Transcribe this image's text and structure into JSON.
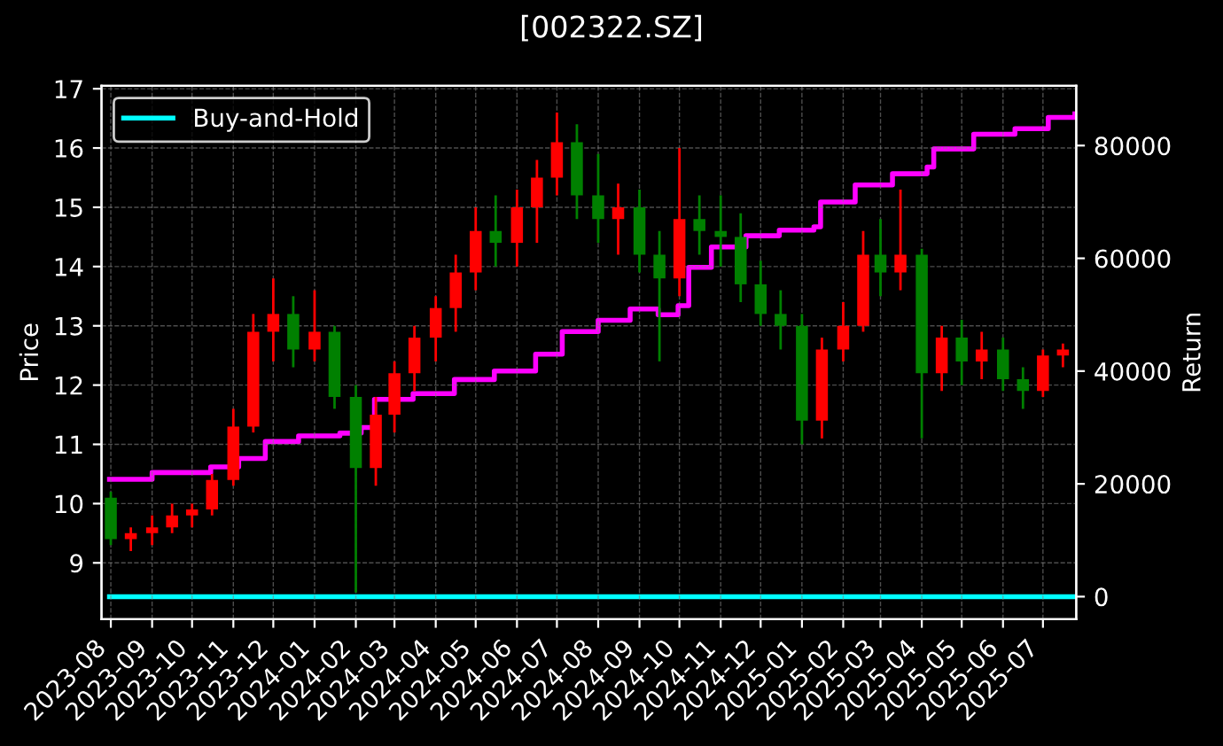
{
  "chart_data": {
    "type": "candlestick",
    "title": "[002322.SZ]",
    "ylabel": "Price",
    "y2label": "Return",
    "x": [
      "2023-08-01",
      "2023-08-16",
      "2023-09-01",
      "2023-09-16",
      "2023-10-01",
      "2023-10-16",
      "2023-11-01",
      "2023-11-16",
      "2023-12-01",
      "2023-12-16",
      "2024-01-01",
      "2024-01-16",
      "2024-02-01",
      "2024-02-16",
      "2024-03-01",
      "2024-03-16",
      "2024-04-01",
      "2024-04-16",
      "2024-05-01",
      "2024-05-16",
      "2024-06-01",
      "2024-06-16",
      "2024-07-01",
      "2024-07-16",
      "2024-08-01",
      "2024-08-16",
      "2024-09-01",
      "2024-09-16",
      "2024-10-01",
      "2024-10-16",
      "2024-11-01",
      "2024-11-16",
      "2024-12-01",
      "2024-12-16",
      "2025-01-01",
      "2025-01-16",
      "2025-02-01",
      "2025-02-16",
      "2025-03-01",
      "2025-03-16",
      "2025-04-01",
      "2025-04-16",
      "2025-05-01",
      "2025-05-16",
      "2025-06-01",
      "2025-06-16",
      "2025-07-01",
      "2025-07-16"
    ],
    "ohlc": [
      [
        10.1,
        10.2,
        9.3,
        9.4
      ],
      [
        9.4,
        9.6,
        9.2,
        9.5
      ],
      [
        9.5,
        9.8,
        9.3,
        9.6
      ],
      [
        9.6,
        10.0,
        9.5,
        9.8
      ],
      [
        9.8,
        10.0,
        9.6,
        9.9
      ],
      [
        9.9,
        10.5,
        9.8,
        10.4
      ],
      [
        10.4,
        11.6,
        10.3,
        11.3
      ],
      [
        11.3,
        13.2,
        11.2,
        12.9
      ],
      [
        12.9,
        13.8,
        12.4,
        13.2
      ],
      [
        13.2,
        13.5,
        12.3,
        12.6
      ],
      [
        12.6,
        13.6,
        12.4,
        12.9
      ],
      [
        12.9,
        13.0,
        11.6,
        11.8
      ],
      [
        11.8,
        12.0,
        8.5,
        10.6
      ],
      [
        10.6,
        11.8,
        10.3,
        11.5
      ],
      [
        11.5,
        12.4,
        11.2,
        12.2
      ],
      [
        12.2,
        13.0,
        11.9,
        12.8
      ],
      [
        12.8,
        13.5,
        12.4,
        13.3
      ],
      [
        13.3,
        14.2,
        12.9,
        13.9
      ],
      [
        13.9,
        15.0,
        13.6,
        14.6
      ],
      [
        14.6,
        15.2,
        14.0,
        14.4
      ],
      [
        14.4,
        15.3,
        14.0,
        15.0
      ],
      [
        15.0,
        15.8,
        14.4,
        15.5
      ],
      [
        15.5,
        16.6,
        15.2,
        16.1
      ],
      [
        16.1,
        16.4,
        14.8,
        15.2
      ],
      [
        15.2,
        15.9,
        14.4,
        14.8
      ],
      [
        14.8,
        15.4,
        14.2,
        15.0
      ],
      [
        15.0,
        15.3,
        13.9,
        14.2
      ],
      [
        14.2,
        14.6,
        12.4,
        13.8
      ],
      [
        13.8,
        16.0,
        13.5,
        14.8
      ],
      [
        14.8,
        15.2,
        14.2,
        14.6
      ],
      [
        14.6,
        15.2,
        14.0,
        14.5
      ],
      [
        14.5,
        14.9,
        13.4,
        13.7
      ],
      [
        13.7,
        14.1,
        13.0,
        13.2
      ],
      [
        13.2,
        13.6,
        12.6,
        13.0
      ],
      [
        13.0,
        13.2,
        11.0,
        11.4
      ],
      [
        11.4,
        12.8,
        11.1,
        12.6
      ],
      [
        12.6,
        13.4,
        12.4,
        13.0
      ],
      [
        13.0,
        14.6,
        12.9,
        14.2
      ],
      [
        14.2,
        14.8,
        13.5,
        13.9
      ],
      [
        13.9,
        15.3,
        13.6,
        14.2
      ],
      [
        14.2,
        14.3,
        11.1,
        12.2
      ],
      [
        12.2,
        13.0,
        11.9,
        12.8
      ],
      [
        12.8,
        13.1,
        12.0,
        12.4
      ],
      [
        12.4,
        12.9,
        12.1,
        12.6
      ],
      [
        12.6,
        12.8,
        11.9,
        12.1
      ],
      [
        12.1,
        12.3,
        11.6,
        11.9
      ],
      [
        11.9,
        12.6,
        11.8,
        12.5
      ],
      [
        12.5,
        12.7,
        12.3,
        12.6
      ]
    ],
    "colors": [
      "#008000",
      "#ff0000",
      "#ff0000",
      "#ff0000",
      "#ff0000",
      "#ff0000",
      "#ff0000",
      "#ff0000",
      "#ff0000",
      "#008000",
      "#ff0000",
      "#008000",
      "#008000",
      "#ff0000",
      "#ff0000",
      "#ff0000",
      "#ff0000",
      "#ff0000",
      "#ff0000",
      "#008000",
      "#ff0000",
      "#ff0000",
      "#ff0000",
      "#008000",
      "#008000",
      "#ff0000",
      "#008000",
      "#008000",
      "#ff0000",
      "#008000",
      "#008000",
      "#008000",
      "#008000",
      "#008000",
      "#008000",
      "#ff0000",
      "#ff0000",
      "#ff0000",
      "#008000",
      "#ff0000",
      "#008000",
      "#ff0000",
      "#008000",
      "#ff0000",
      "#008000",
      "#008000",
      "#ff0000",
      "#ff0000"
    ],
    "series": [
      {
        "type": "step",
        "axis": "y2",
        "color": "#ff00ff",
        "x": [
          "2023-07-31",
          "2023-09-01",
          "2023-10-15",
          "2023-11-05",
          "2023-11-25",
          "2023-12-20",
          "2024-01-20",
          "2024-02-05",
          "2024-02-15",
          "2024-03-15",
          "2024-04-15",
          "2024-05-15",
          "2024-06-15",
          "2024-07-05",
          "2024-08-01",
          "2024-08-25",
          "2024-09-15",
          "2024-09-30",
          "2024-10-08",
          "2024-10-25",
          "2024-11-20",
          "2024-12-15",
          "2025-01-10",
          "2025-01-15",
          "2025-02-10",
          "2025-03-10",
          "2025-04-05",
          "2025-04-10",
          "2025-05-10",
          "2025-06-10",
          "2025-07-05",
          "2025-07-25"
        ],
        "values": [
          20800,
          22000,
          23000,
          24500,
          27500,
          28500,
          29000,
          30000,
          35000,
          36000,
          38500,
          40000,
          43000,
          47000,
          49000,
          51000,
          50000,
          51600,
          58400,
          62000,
          64000,
          65000,
          65600,
          70000,
          73000,
          75000,
          76200,
          79400,
          82000,
          83000,
          85000,
          85600
        ]
      },
      {
        "type": "line",
        "axis": "y2",
        "name": "Buy-and-Hold",
        "color": "#00ffff",
        "x": [
          "2023-07-31",
          "2025-07-25"
        ],
        "values": [
          0,
          0
        ]
      }
    ],
    "xlim": [
      "2023-07-25",
      "2025-07-26"
    ],
    "xticks": [
      {
        "value": "2023-08-01",
        "label": "2023-08"
      },
      {
        "value": "2023-09-01",
        "label": "2023-09"
      },
      {
        "value": "2023-10-01",
        "label": "2023-10"
      },
      {
        "value": "2023-11-01",
        "label": "2023-11"
      },
      {
        "value": "2023-12-01",
        "label": "2023-12"
      },
      {
        "value": "2024-01-01",
        "label": "2024-01"
      },
      {
        "value": "2024-02-01",
        "label": "2024-02"
      },
      {
        "value": "2024-03-01",
        "label": "2024-03"
      },
      {
        "value": "2024-04-01",
        "label": "2024-04"
      },
      {
        "value": "2024-05-01",
        "label": "2024-05"
      },
      {
        "value": "2024-06-01",
        "label": "2024-06"
      },
      {
        "value": "2024-07-01",
        "label": "2024-07"
      },
      {
        "value": "2024-08-01",
        "label": "2024-08"
      },
      {
        "value": "2024-09-01",
        "label": "2024-09"
      },
      {
        "value": "2024-10-01",
        "label": "2024-10"
      },
      {
        "value": "2024-11-01",
        "label": "2024-11"
      },
      {
        "value": "2024-12-01",
        "label": "2024-12"
      },
      {
        "value": "2025-01-01",
        "label": "2025-01"
      },
      {
        "value": "2025-02-01",
        "label": "2025-02"
      },
      {
        "value": "2025-03-01",
        "label": "2025-03"
      },
      {
        "value": "2025-04-01",
        "label": "2025-04"
      },
      {
        "value": "2025-05-01",
        "label": "2025-05"
      },
      {
        "value": "2025-06-01",
        "label": "2025-06"
      },
      {
        "value": "2025-07-01",
        "label": "2025-07"
      }
    ],
    "ylim": [
      8.05,
      17.05
    ],
    "yticks": [
      9,
      10,
      11,
      12,
      13,
      14,
      15,
      16,
      17
    ],
    "y2lim": [
      -4000,
      90600
    ],
    "y2ticks": [
      0,
      20000,
      40000,
      60000,
      80000
    ],
    "grid": true,
    "legend": "top left"
  }
}
